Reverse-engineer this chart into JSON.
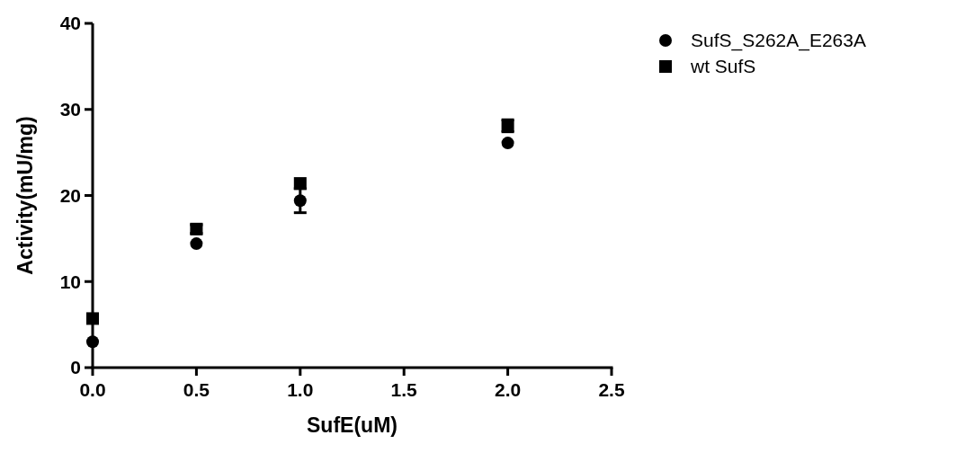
{
  "chart_data": {
    "type": "scatter",
    "xlabel": "SufE(uM)",
    "ylabel": "Activity(mU/mg)",
    "x": [
      0,
      0.5,
      1,
      2
    ],
    "series": [
      {
        "name": "SufS_S262A_E263A",
        "color": "#000000",
        "marker": "circle",
        "values": [
          3.0,
          14.4,
          19.4,
          26.1
        ],
        "errors": [
          null,
          null,
          1.4,
          null
        ]
      },
      {
        "name": "wt SufS",
        "color": "#000000",
        "marker": "square",
        "values": [
          5.7,
          16.1,
          21.4,
          28.1
        ],
        "errors": [
          null,
          0.5,
          null,
          0.7
        ]
      }
    ],
    "xlim": [
      0,
      2.5
    ],
    "xticks": [
      {
        "value": 0,
        "label": "0.0"
      },
      0.5,
      {
        "value": 1,
        "label": "1.0"
      },
      1.5,
      {
        "value": 2,
        "label": "2.0"
      },
      2.5
    ],
    "ylim": [
      0,
      40
    ],
    "yticks": [
      0,
      10,
      20,
      30,
      40
    ],
    "grid": false,
    "legend": "top right"
  }
}
